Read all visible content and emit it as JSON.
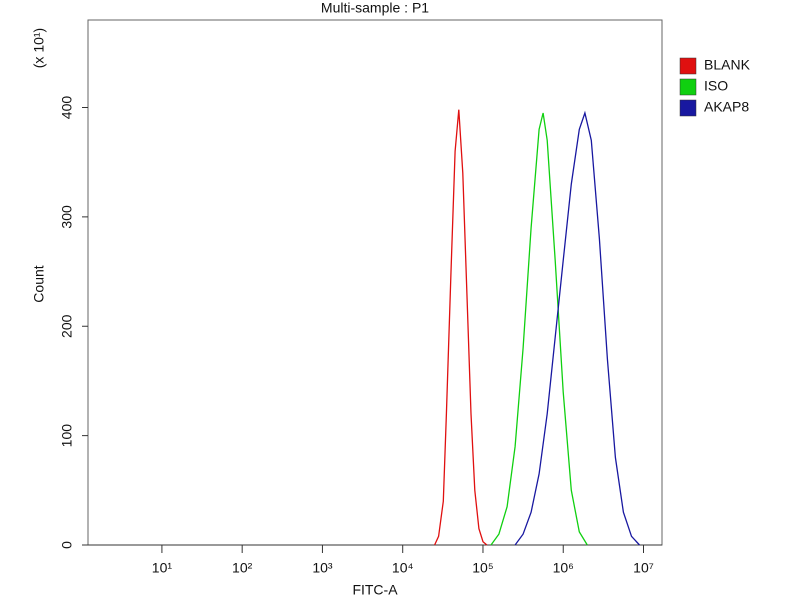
{
  "chart_data": {
    "type": "line",
    "title": "Multi-sample : P1",
    "x_label": "FITC-A",
    "y_label": "Count",
    "y_multiplier": "(x 10¹)",
    "xscale": "log",
    "xlim": [
      1.2,
      17000000
    ],
    "ylim": [
      0,
      480
    ],
    "xticks": [
      {
        "value": 10,
        "label": "10¹"
      },
      {
        "value": 100,
        "label": "10²"
      },
      {
        "value": 1000,
        "label": "10³"
      },
      {
        "value": 10000,
        "label": "10⁴"
      },
      {
        "value": 100000,
        "label": "10⁵"
      },
      {
        "value": 1000000,
        "label": "10⁶"
      },
      {
        "value": 10000000,
        "label": "10⁷"
      }
    ],
    "yticks": [
      0,
      100,
      200,
      300,
      400
    ],
    "legend": "right",
    "series": [
      {
        "name": "BLANK",
        "color": "#e01010",
        "x": [
          25000,
          28000,
          32000,
          35000,
          40000,
          45000,
          50000,
          56000,
          63000,
          71000,
          79000,
          89000,
          100000,
          112000
        ],
        "values": [
          0,
          8,
          40,
          120,
          250,
          360,
          398,
          340,
          230,
          120,
          50,
          15,
          3,
          0
        ]
      },
      {
        "name": "ISO",
        "color": "#10d010",
        "x": [
          126000,
          158000,
          200000,
          251000,
          316000,
          398000,
          501000,
          562000,
          631000,
          794000,
          1000000,
          1259000,
          1585000,
          1995000
        ],
        "values": [
          0,
          10,
          35,
          90,
          180,
          290,
          380,
          395,
          370,
          260,
          140,
          50,
          12,
          0
        ]
      },
      {
        "name": "AKAP8",
        "color": "#1818a0",
        "x": [
          251000,
          316000,
          398000,
          501000,
          631000,
          794000,
          1000000,
          1259000,
          1585000,
          1862000,
          2239000,
          2818000,
          3548000,
          4467000,
          5623000,
          7079000,
          8913000
        ],
        "values": [
          0,
          10,
          30,
          65,
          120,
          190,
          260,
          330,
          380,
          395,
          370,
          280,
          170,
          80,
          30,
          8,
          0
        ]
      }
    ]
  }
}
